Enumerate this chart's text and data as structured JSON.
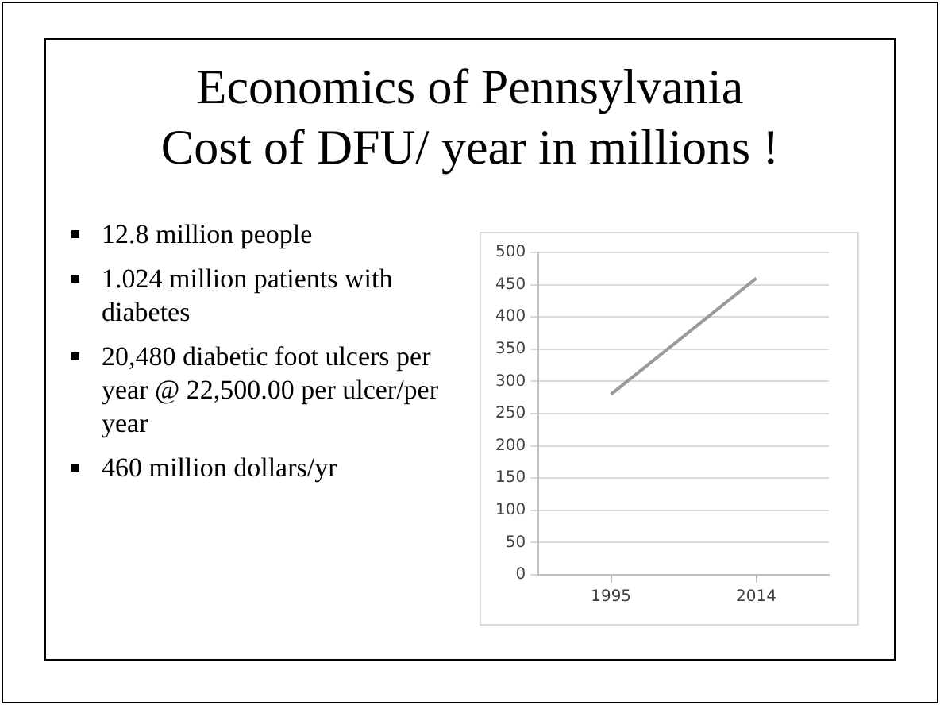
{
  "chart_data": {
    "type": "line",
    "title": "Economics of Pennsylvania\nCost of DFU/ year in millions !",
    "categories": [
      "1995",
      "2014"
    ],
    "series": [
      {
        "color": "#9a9a9a",
        "values": [
          280,
          460
        ]
      }
    ],
    "ylim": [
      0,
      500
    ],
    "yticks": [
      0,
      50,
      100,
      150,
      200,
      250,
      300,
      350,
      400,
      450,
      500
    ],
    "grid": "y",
    "legend": false,
    "marker": "none",
    "line_style": "solid",
    "annotations": [
      "12.8 million people",
      "1.024 million patients with diabetes",
      "20,480 diabetic foot ulcers per year @ 22,500.00 per ulcer/per year",
      "460 million dollars/yr"
    ]
  }
}
